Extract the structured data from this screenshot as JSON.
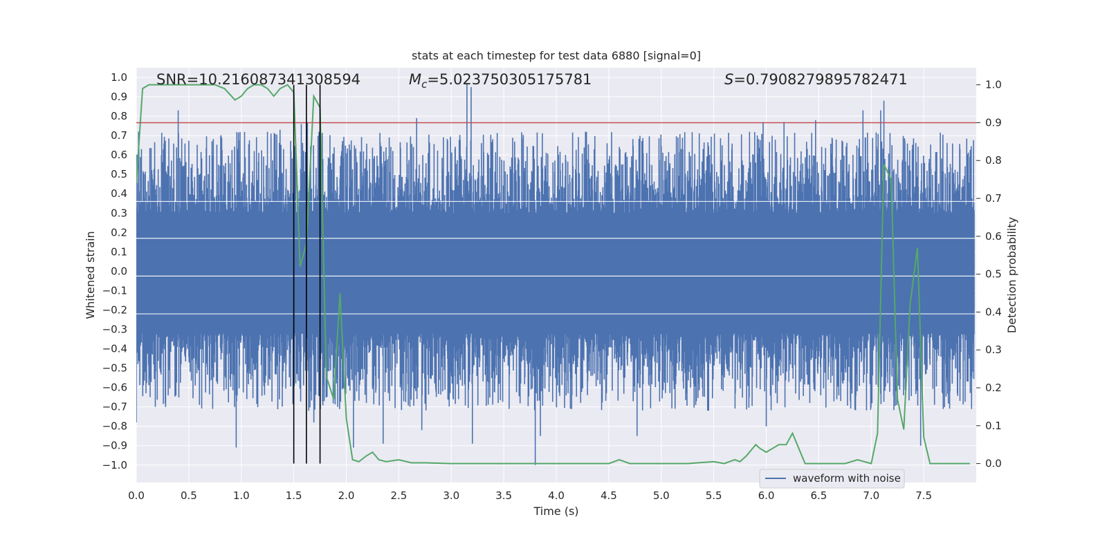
{
  "chart_data": {
    "type": "line",
    "title": "stats at each timestep for test data 6880 [signal=0]",
    "xlabel": "Time (s)",
    "ylabel_left": "Whitened strain",
    "ylabel_right": "Detection probability",
    "xlim": [
      0.0,
      8.0
    ],
    "ylim_left": [
      -1.09,
      1.05
    ],
    "ylim_right": [
      -0.05,
      1.045
    ],
    "x_ticks": [
      0.0,
      0.5,
      1.0,
      1.5,
      2.0,
      2.5,
      3.0,
      3.5,
      4.0,
      4.5,
      5.0,
      5.5,
      6.0,
      6.5,
      7.0,
      7.5
    ],
    "x_tick_labels": [
      "0.0",
      "0.5",
      "1.0",
      "1.5",
      "2.0",
      "2.5",
      "3.0",
      "3.5",
      "4.0",
      "4.5",
      "5.0",
      "5.5",
      "6.0",
      "6.5",
      "7.0",
      "7.5"
    ],
    "y_left_ticks": [
      1.0,
      0.9,
      0.8,
      0.7,
      0.6,
      0.5,
      0.4,
      0.3,
      0.2,
      0.1,
      0.0,
      -0.1,
      -0.2,
      -0.3,
      -0.4,
      -0.5,
      -0.6,
      -0.7,
      -0.8,
      -0.9,
      -1.0
    ],
    "y_left_tick_labels": [
      "1.0",
      "0.9",
      "0.8",
      "0.7",
      "0.6",
      "0.5",
      "0.4",
      "0.3",
      "0.2",
      "0.1",
      "0.0",
      "−0.1",
      "−0.2",
      "−0.3",
      "−0.4",
      "−0.5",
      "−0.6",
      "−0.7",
      "−0.8",
      "−0.9",
      "−1.0"
    ],
    "y_right_ticks": [
      1.0,
      0.9,
      0.8,
      0.7,
      0.6,
      0.5,
      0.4,
      0.3,
      0.2,
      0.1,
      0.0
    ],
    "y_right_tick_labels": [
      "1.0",
      "0.9",
      "0.8",
      "0.7",
      "0.6",
      "0.5",
      "0.4",
      "0.3",
      "0.2",
      "0.1",
      "0.0"
    ],
    "annotations": {
      "snr": "SNR=10.216087341308594",
      "mc_symbol": "M",
      "mc_subscript": "c",
      "mc_value": "=5.023750305175781",
      "s_symbol": "S",
      "s_value": "=0.7908279895782471"
    },
    "threshold_right": 0.9,
    "vertical_lines_x": [
      1.5,
      1.62,
      1.75
    ],
    "legend": {
      "label": "waveform with noise",
      "position": "lower-right"
    },
    "series": [
      {
        "name": "waveform with noise",
        "axis": "left",
        "color": "#4c72b0",
        "description": "whitened strain noise, values roughly within ±0.45 with spikes",
        "spikes_up": [
          [
            0.02,
            0.72
          ],
          [
            0.27,
            0.55
          ],
          [
            0.4,
            0.83
          ],
          [
            0.72,
            0.67
          ],
          [
            1.37,
            0.73
          ],
          [
            1.57,
            0.76
          ],
          [
            1.63,
            0.77
          ],
          [
            1.74,
            0.72
          ],
          [
            2.67,
            0.79
          ],
          [
            3.15,
            0.97
          ],
          [
            3.19,
            0.95
          ],
          [
            4.28,
            0.72
          ],
          [
            5.97,
            0.77
          ],
          [
            6.17,
            0.77
          ],
          [
            6.47,
            0.78
          ],
          [
            7.12,
            0.88
          ],
          [
            7.09,
            0.83
          ],
          [
            6.92,
            0.83
          ]
        ],
        "spikes_down": [
          [
            0.0,
            -0.78
          ],
          [
            0.95,
            -0.91
          ],
          [
            1.69,
            -0.78
          ],
          [
            2.07,
            -0.91
          ],
          [
            2.35,
            -0.89
          ],
          [
            2.72,
            -0.82
          ],
          [
            3.2,
            -0.89
          ],
          [
            3.8,
            -1.0
          ],
          [
            3.85,
            -0.85
          ],
          [
            4.77,
            -0.85
          ],
          [
            6.0,
            -0.8
          ],
          [
            7.47,
            -0.9
          ]
        ]
      },
      {
        "name": "detection probability",
        "axis": "right",
        "color": "#55a868",
        "x": [
          0.0,
          0.06,
          0.12,
          0.25,
          0.5,
          0.75,
          0.84,
          0.94,
          1.0,
          1.06,
          1.12,
          1.19,
          1.25,
          1.31,
          1.37,
          1.44,
          1.5,
          1.56,
          1.62,
          1.69,
          1.75,
          1.81,
          1.88,
          1.94,
          2.0,
          2.06,
          2.12,
          2.19,
          2.25,
          2.31,
          2.38,
          2.5,
          2.62,
          2.75,
          3.0,
          3.5,
          4.0,
          4.5,
          4.6,
          4.7,
          5.0,
          5.25,
          5.5,
          5.6,
          5.7,
          5.75,
          5.81,
          5.9,
          5.94,
          6.0,
          6.06,
          6.12,
          6.19,
          6.25,
          6.31,
          6.37,
          6.5,
          6.62,
          6.75,
          6.87,
          7.0,
          7.06,
          7.12,
          7.19,
          7.25,
          7.31,
          7.37,
          7.44,
          7.5,
          7.56,
          7.69,
          7.87,
          7.94
        ],
        "y": [
          0.74,
          0.99,
          1.0,
          1.0,
          1.0,
          1.0,
          0.99,
          0.96,
          0.97,
          0.99,
          1.0,
          1.0,
          0.99,
          0.97,
          0.99,
          1.0,
          0.98,
          0.52,
          0.58,
          0.97,
          0.94,
          0.23,
          0.17,
          0.45,
          0.12,
          0.01,
          0.005,
          0.02,
          0.03,
          0.01,
          0.005,
          0.01,
          0.002,
          0.002,
          0.0,
          0.0,
          0.0,
          0.0,
          0.01,
          0.0,
          0.0,
          0.0,
          0.005,
          0.0,
          0.01,
          0.005,
          0.02,
          0.05,
          0.04,
          0.03,
          0.04,
          0.05,
          0.05,
          0.08,
          0.04,
          0.0,
          0.0,
          0.0,
          0.0,
          0.01,
          0.0,
          0.08,
          0.79,
          0.75,
          0.17,
          0.09,
          0.42,
          0.57,
          0.07,
          0.0,
          0.0,
          0.0,
          0.0
        ]
      }
    ]
  }
}
